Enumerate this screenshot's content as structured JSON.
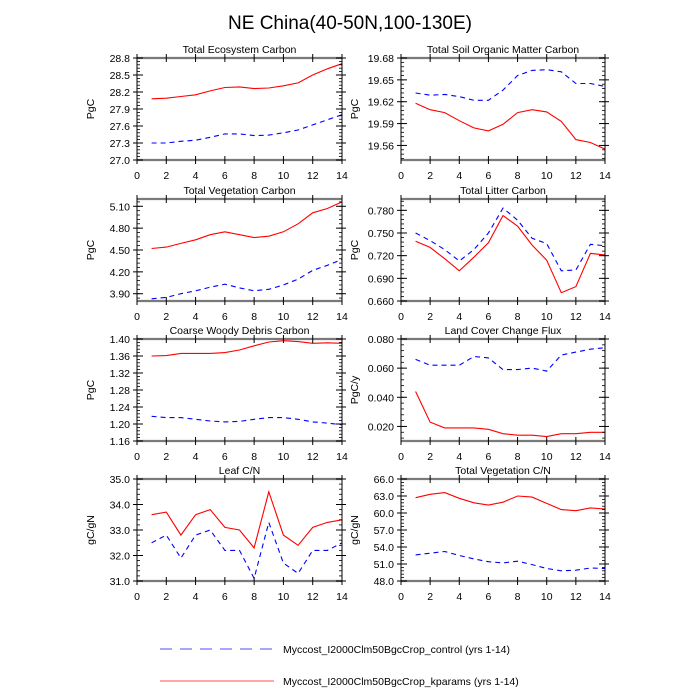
{
  "figure": {
    "title": "NE China(40-50N,100-130E)"
  },
  "legend": [
    {
      "label": "Myccost_I2000Clm50BgcCrop_control (yrs 1-14)",
      "color": "#0000ff",
      "style": "dashed"
    },
    {
      "label": "Myccost_I2000Clm50BgcCrop_kparams (yrs 1-14)",
      "color": "#ff0000",
      "style": "solid"
    }
  ],
  "chart_data": [
    {
      "type": "line",
      "title": "Total Ecosystem Carbon",
      "xlabel": "",
      "ylabel": "PgC",
      "xlim": [
        0,
        14
      ],
      "ylim": [
        27.0,
        28.8
      ],
      "xticks": [
        0,
        2,
        4,
        6,
        8,
        10,
        12,
        14
      ],
      "yticks": [
        27.0,
        27.3,
        27.6,
        27.9,
        28.2,
        28.5,
        28.8
      ],
      "ytick_labels": [
        "27.0",
        "27.3",
        "27.6",
        "27.9",
        "28.2",
        "28.5",
        "28.8"
      ],
      "x": [
        1,
        2,
        3,
        4,
        5,
        6,
        7,
        8,
        9,
        10,
        11,
        12,
        13,
        14
      ],
      "series": [
        {
          "name": "control",
          "color": "#0000ff",
          "style": "dashed",
          "values": [
            27.3,
            27.3,
            27.33,
            27.35,
            27.4,
            27.46,
            27.46,
            27.43,
            27.44,
            27.48,
            27.53,
            27.62,
            27.71,
            27.8
          ]
        },
        {
          "name": "kparams",
          "color": "#ff0000",
          "style": "solid",
          "values": [
            28.08,
            28.09,
            28.12,
            28.15,
            28.22,
            28.28,
            28.29,
            28.26,
            28.27,
            28.31,
            28.36,
            28.5,
            28.61,
            28.7
          ]
        }
      ]
    },
    {
      "type": "line",
      "title": "Total Soil Organic Matter Carbon",
      "xlabel": "",
      "ylabel": "PgC",
      "xlim": [
        0,
        14
      ],
      "ylim": [
        19.54,
        19.68
      ],
      "xticks": [
        0,
        2,
        4,
        6,
        8,
        10,
        12,
        14
      ],
      "yticks": [
        19.56,
        19.59,
        19.62,
        19.65,
        19.68
      ],
      "ytick_labels": [
        "19.56",
        "19.59",
        "19.62",
        "19.65",
        "19.68"
      ],
      "x": [
        1,
        2,
        3,
        4,
        5,
        6,
        7,
        8,
        9,
        10,
        11,
        12,
        13,
        14
      ],
      "series": [
        {
          "name": "control",
          "color": "#0000ff",
          "style": "dashed",
          "values": [
            19.632,
            19.629,
            19.63,
            19.627,
            19.622,
            19.622,
            19.636,
            19.656,
            19.663,
            19.664,
            19.661,
            19.645,
            19.645,
            19.641
          ]
        },
        {
          "name": "kparams",
          "color": "#ff0000",
          "style": "solid",
          "values": [
            19.618,
            19.609,
            19.605,
            19.594,
            19.584,
            19.58,
            19.589,
            19.605,
            19.609,
            19.606,
            19.593,
            19.568,
            19.564,
            19.555
          ]
        }
      ]
    },
    {
      "type": "line",
      "title": "Total Vegetation Carbon",
      "xlabel": "",
      "ylabel": "PgC",
      "xlim": [
        0,
        14
      ],
      "ylim": [
        3.8,
        5.2
      ],
      "xticks": [
        0,
        2,
        4,
        6,
        8,
        10,
        12,
        14
      ],
      "yticks": [
        3.9,
        4.2,
        4.5,
        4.8,
        5.1
      ],
      "ytick_labels": [
        "3.90",
        "4.20",
        "4.50",
        "4.80",
        "5.10"
      ],
      "x": [
        1,
        2,
        3,
        4,
        5,
        6,
        7,
        8,
        9,
        10,
        11,
        12,
        13,
        14
      ],
      "series": [
        {
          "name": "control",
          "color": "#0000ff",
          "style": "dashed",
          "values": [
            3.83,
            3.85,
            3.9,
            3.94,
            3.99,
            4.03,
            3.98,
            3.94,
            3.96,
            4.02,
            4.1,
            4.22,
            4.29,
            4.37
          ]
        },
        {
          "name": "kparams",
          "color": "#ff0000",
          "style": "solid",
          "values": [
            4.52,
            4.54,
            4.59,
            4.64,
            4.71,
            4.75,
            4.71,
            4.67,
            4.69,
            4.75,
            4.86,
            5.01,
            5.07,
            5.16
          ]
        }
      ]
    },
    {
      "type": "line",
      "title": "Total Litter Carbon",
      "xlabel": "",
      "ylabel": "PgC",
      "xlim": [
        0,
        14
      ],
      "ylim": [
        0.66,
        0.795
      ],
      "xticks": [
        0,
        2,
        4,
        6,
        8,
        10,
        12,
        14
      ],
      "yticks": [
        0.66,
        0.69,
        0.72,
        0.75,
        0.78
      ],
      "ytick_labels": [
        "0.660",
        "0.690",
        "0.720",
        "0.750",
        "0.780"
      ],
      "x": [
        1,
        2,
        3,
        4,
        5,
        6,
        7,
        8,
        9,
        10,
        11,
        12,
        13,
        14
      ],
      "series": [
        {
          "name": "control",
          "color": "#0000ff",
          "style": "dashed",
          "values": [
            0.75,
            0.74,
            0.728,
            0.713,
            0.728,
            0.75,
            0.783,
            0.767,
            0.743,
            0.736,
            0.7,
            0.701,
            0.735,
            0.733
          ]
        },
        {
          "name": "kparams",
          "color": "#ff0000",
          "style": "solid",
          "values": [
            0.739,
            0.731,
            0.716,
            0.7,
            0.718,
            0.737,
            0.773,
            0.759,
            0.734,
            0.714,
            0.671,
            0.679,
            0.723,
            0.721
          ]
        }
      ]
    },
    {
      "type": "line",
      "title": "Coarse Woody Debris Carbon",
      "xlabel": "",
      "ylabel": "PgC",
      "xlim": [
        0,
        14
      ],
      "ylim": [
        1.16,
        1.4
      ],
      "xticks": [
        0,
        2,
        4,
        6,
        8,
        10,
        12,
        14
      ],
      "yticks": [
        1.16,
        1.2,
        1.24,
        1.28,
        1.32,
        1.36,
        1.4
      ],
      "ytick_labels": [
        "1.16",
        "1.20",
        "1.24",
        "1.28",
        "1.32",
        "1.36",
        "1.40"
      ],
      "x": [
        1,
        2,
        3,
        4,
        5,
        6,
        7,
        8,
        9,
        10,
        11,
        12,
        13,
        14
      ],
      "series": [
        {
          "name": "control",
          "color": "#0000ff",
          "style": "dashed",
          "values": [
            1.218,
            1.215,
            1.215,
            1.211,
            1.207,
            1.205,
            1.206,
            1.211,
            1.215,
            1.215,
            1.211,
            1.205,
            1.202,
            1.198
          ]
        },
        {
          "name": "kparams",
          "color": "#ff0000",
          "style": "solid",
          "values": [
            1.36,
            1.361,
            1.366,
            1.366,
            1.366,
            1.368,
            1.374,
            1.384,
            1.393,
            1.396,
            1.394,
            1.39,
            1.391,
            1.39
          ]
        }
      ]
    },
    {
      "type": "line",
      "title": "Land Cover Change Flux",
      "xlabel": "",
      "ylabel": "PgC/y",
      "xlim": [
        0,
        14
      ],
      "ylim": [
        0.01,
        0.08
      ],
      "xticks": [
        0,
        2,
        4,
        6,
        8,
        10,
        12,
        14
      ],
      "yticks": [
        0.02,
        0.04,
        0.06,
        0.08
      ],
      "ytick_labels": [
        "0.020",
        "0.040",
        "0.060",
        "0.080"
      ],
      "x": [
        1,
        2,
        3,
        4,
        5,
        6,
        7,
        8,
        9,
        10,
        11,
        12,
        13,
        14
      ],
      "series": [
        {
          "name": "control",
          "color": "#0000ff",
          "style": "dashed",
          "values": [
            0.066,
            0.062,
            0.062,
            0.062,
            0.068,
            0.067,
            0.059,
            0.059,
            0.06,
            0.058,
            0.069,
            0.071,
            0.073,
            0.074
          ]
        },
        {
          "name": "kparams",
          "color": "#ff0000",
          "style": "solid",
          "values": [
            0.044,
            0.023,
            0.019,
            0.019,
            0.019,
            0.018,
            0.015,
            0.014,
            0.014,
            0.013,
            0.015,
            0.015,
            0.016,
            0.016
          ]
        }
      ]
    },
    {
      "type": "line",
      "title": "Leaf C/N",
      "xlabel": "",
      "ylabel": "gC/gN",
      "xlim": [
        0,
        14
      ],
      "ylim": [
        31.0,
        35.0
      ],
      "xticks": [
        0,
        2,
        4,
        6,
        8,
        10,
        12,
        14
      ],
      "yticks": [
        31.0,
        32.0,
        33.0,
        34.0,
        35.0
      ],
      "ytick_labels": [
        "31.0",
        "32.0",
        "33.0",
        "34.0",
        "35.0"
      ],
      "x": [
        1,
        2,
        3,
        4,
        5,
        6,
        7,
        8,
        9,
        10,
        11,
        12,
        13,
        14
      ],
      "series": [
        {
          "name": "control",
          "color": "#0000ff",
          "style": "dashed",
          "values": [
            32.5,
            32.8,
            31.9,
            32.8,
            33.0,
            32.2,
            32.2,
            31.1,
            33.3,
            31.7,
            31.3,
            32.2,
            32.2,
            32.5
          ]
        },
        {
          "name": "kparams",
          "color": "#ff0000",
          "style": "solid",
          "values": [
            33.6,
            33.7,
            32.8,
            33.6,
            33.8,
            33.1,
            33.0,
            32.3,
            34.5,
            32.8,
            32.4,
            33.1,
            33.3,
            33.4
          ]
        }
      ]
    },
    {
      "type": "line",
      "title": "Total Vegetation C/N",
      "xlabel": "",
      "ylabel": "gC/gN",
      "xlim": [
        0,
        14
      ],
      "ylim": [
        48.0,
        66.0
      ],
      "xticks": [
        0,
        2,
        4,
        6,
        8,
        10,
        12,
        14
      ],
      "yticks": [
        48.0,
        51.0,
        54.0,
        57.0,
        60.0,
        63.0,
        66.0
      ],
      "ytick_labels": [
        "48.0",
        "51.0",
        "54.0",
        "57.0",
        "60.0",
        "63.0",
        "66.0"
      ],
      "x": [
        1,
        2,
        3,
        4,
        5,
        6,
        7,
        8,
        9,
        10,
        11,
        12,
        13,
        14
      ],
      "series": [
        {
          "name": "control",
          "color": "#0000ff",
          "style": "dashed",
          "values": [
            52.6,
            52.9,
            53.2,
            52.5,
            51.9,
            51.4,
            51.2,
            51.5,
            50.9,
            50.2,
            49.8,
            49.9,
            50.3,
            50.2
          ]
        },
        {
          "name": "kparams",
          "color": "#ff0000",
          "style": "solid",
          "values": [
            62.7,
            63.3,
            63.6,
            62.6,
            61.8,
            61.4,
            61.9,
            63.0,
            62.8,
            61.7,
            60.6,
            60.4,
            60.9,
            60.7
          ]
        }
      ]
    }
  ]
}
